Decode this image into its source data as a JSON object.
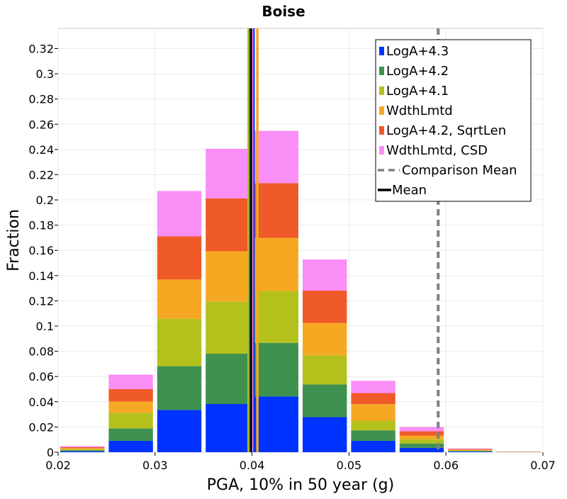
{
  "chart_data": {
    "type": "bar",
    "stacked": true,
    "title": "Boise",
    "xlabel": "PGA, 10% in 50 year (g)",
    "ylabel": "Fraction",
    "xlim": [
      0.02,
      0.07
    ],
    "ylim": [
      0,
      0.336
    ],
    "xticks": [
      "0.02",
      "0.03",
      "0.04",
      "0.05",
      "0.06",
      "0.07"
    ],
    "yticks": [
      "0",
      "0.02",
      "0.04",
      "0.06",
      "0.08",
      "0.1",
      "0.12",
      "0.14",
      "0.16",
      "0.18",
      "0.2",
      "0.22",
      "0.24",
      "0.26",
      "0.28",
      "0.3",
      "0.32"
    ],
    "grid": true,
    "legend_position": "top-right",
    "bin_centers": [
      0.0225,
      0.0275,
      0.0325,
      0.0375,
      0.0425,
      0.0475,
      0.0525,
      0.0575,
      0.0625,
      0.0675
    ],
    "bin_width": 0.005,
    "series": [
      {
        "name": "LogA+4.3",
        "color": "#0033ff",
        "values": [
          0.0008,
          0.009,
          0.0335,
          0.0382,
          0.0442,
          0.0278,
          0.009,
          0.0035,
          0.0005,
          0.0001
        ]
      },
      {
        "name": "LogA+4.2",
        "color": "#3f9150",
        "values": [
          0.0008,
          0.0098,
          0.0347,
          0.0399,
          0.0425,
          0.0259,
          0.0083,
          0.0034,
          0.0005,
          0.0001
        ]
      },
      {
        "name": "LogA+4.1",
        "color": "#b4c11c",
        "values": [
          0.0008,
          0.0125,
          0.0376,
          0.0414,
          0.0411,
          0.0231,
          0.0077,
          0.0034,
          0.0005,
          0.0001
        ]
      },
      {
        "name": "WdthLmtd",
        "color": "#f7a823",
        "values": [
          0.0008,
          0.0089,
          0.0311,
          0.0398,
          0.0421,
          0.0256,
          0.0131,
          0.0029,
          0.0005,
          0.0001
        ]
      },
      {
        "name": "LogA+4.2, SqrtLen",
        "color": "#f05a28",
        "values": [
          0.0008,
          0.0098,
          0.0342,
          0.0419,
          0.0434,
          0.0257,
          0.0088,
          0.0034,
          0.0005,
          0.0001
        ]
      },
      {
        "name": "WdthLmtd, CSD",
        "color": "#fa8ef7",
        "values": [
          0.0008,
          0.0115,
          0.036,
          0.0393,
          0.0414,
          0.0247,
          0.0097,
          0.0034,
          0.0005,
          0.0001
        ]
      }
    ],
    "reference_lines": [
      {
        "name": "Comparison Mean",
        "x": 0.0592,
        "color": "#808080",
        "style": "dashed"
      },
      {
        "name": "Mean",
        "x": 0.0399,
        "color": "#000000",
        "style": "solid"
      }
    ],
    "unlabeled_mean_lines": [
      {
        "x": 0.03965,
        "color": "#b4c11c"
      },
      {
        "x": 0.04055,
        "color": "#f7a823"
      },
      {
        "x": 0.04015,
        "color": "#0033ff"
      },
      {
        "x": 0.03995,
        "color": "#f05a28"
      },
      {
        "x": 0.0398,
        "color": "#3f9150"
      },
      {
        "x": 0.04,
        "color": "#fa8ef7"
      }
    ]
  }
}
